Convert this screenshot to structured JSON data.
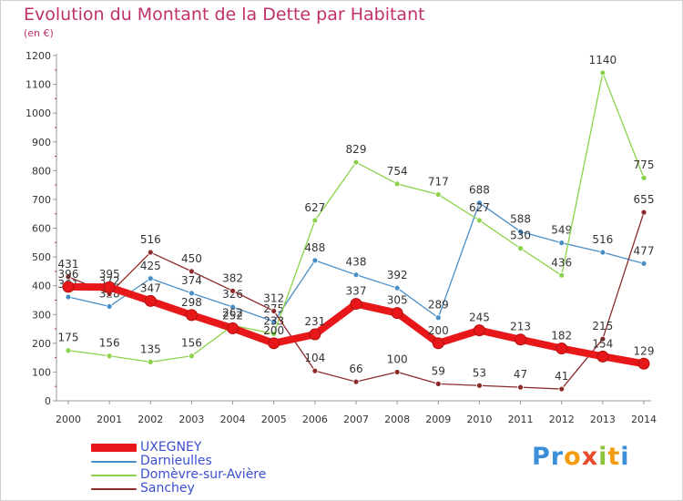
{
  "header": {
    "title": "Evolution du Montant de la Dette par Habitant",
    "unit": "(en €)"
  },
  "chart_data": {
    "type": "line",
    "title": "Evolution du Montant de la Dette par Habitant",
    "ylabel": "(en €)",
    "xlabel": "",
    "x": [
      "2000",
      "2001",
      "2002",
      "2003",
      "2004",
      "2005",
      "2006",
      "2007",
      "2008",
      "2009",
      "2010",
      "2011",
      "2012",
      "2013",
      "2014"
    ],
    "ylim": [
      0,
      1200
    ],
    "yticks": [
      0,
      100,
      200,
      300,
      400,
      500,
      600,
      700,
      800,
      900,
      1000,
      1100,
      1200
    ],
    "grid": false,
    "legend_position": "bottom-left",
    "series": [
      {
        "name": "Darnieulles",
        "color": "#4a8ec8",
        "values": [
          361,
          328,
          425,
          374,
          326,
          275,
          488,
          438,
          392,
          289,
          688,
          588,
          549,
          516,
          477
        ]
      },
      {
        "name": "Domèvre-sur-Avière",
        "color": "#8ad24a",
        "values": [
          175,
          156,
          135,
          156,
          262,
          233,
          627,
          829,
          754,
          717,
          627,
          530,
          436,
          1140,
          775
        ]
      },
      {
        "name": "Sanchey",
        "color": "#8b2a2a",
        "values": [
          431,
          372,
          516,
          450,
          382,
          312,
          104,
          66,
          100,
          59,
          53,
          47,
          41,
          215,
          655
        ]
      },
      {
        "name": "UXEGNEY",
        "color": "#e8181a",
        "values": [
          396,
          395,
          347,
          298,
          252,
          200,
          231,
          337,
          305,
          200,
          245,
          213,
          182,
          154,
          129
        ]
      }
    ]
  },
  "legend": {
    "items": [
      {
        "label": "UXEGNEY",
        "color": "#e8181a"
      },
      {
        "label": "Darnieulles",
        "color": "#4a8ec8"
      },
      {
        "label": "Domèvre-sur-Avière",
        "color": "#8ad24a"
      },
      {
        "label": "Sanchey",
        "color": "#8b2a2a"
      }
    ]
  },
  "logo": {
    "text": "Proxiti",
    "letters": [
      "P",
      "r",
      "o",
      "x",
      "i",
      "t",
      "i"
    ],
    "colors": [
      "#3a8fd6",
      "#3a8fd6",
      "#f39c12",
      "#e84a2a",
      "#8ac33e",
      "#f39c12",
      "#3a8fd6"
    ]
  }
}
